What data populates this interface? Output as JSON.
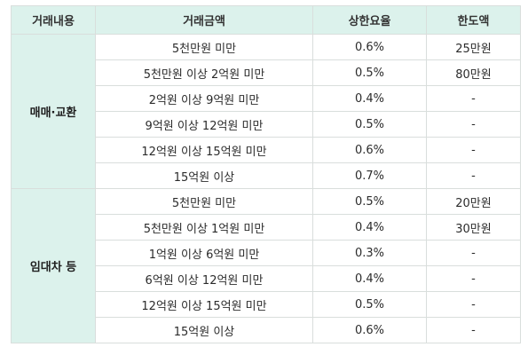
{
  "headers": {
    "category": "거래내용",
    "amount": "거래금액",
    "rate": "상한요율",
    "limit": "한도액"
  },
  "groups": [
    {
      "category": "매매·교환",
      "rows": [
        {
          "amount": "5천만원 미만",
          "rate": "0.6%",
          "limit": "25만원"
        },
        {
          "amount": "5천만원 이상 2억원 미만",
          "rate": "0.5%",
          "limit": "80만원"
        },
        {
          "amount": "2억원 이상 9억원 미만",
          "rate": "0.4%",
          "limit": "-"
        },
        {
          "amount": "9억원 이상 12억원 미만",
          "rate": "0.5%",
          "limit": "-"
        },
        {
          "amount": "12억원 이상 15억원 미만",
          "rate": "0.6%",
          "limit": "-"
        },
        {
          "amount": "15억원 이상",
          "rate": "0.7%",
          "limit": "-"
        }
      ]
    },
    {
      "category": "임대차 등",
      "rows": [
        {
          "amount": "5천만원 미만",
          "rate": "0.5%",
          "limit": "20만원"
        },
        {
          "amount": "5천만원 이상 1억원 미만",
          "rate": "0.4%",
          "limit": "30만원"
        },
        {
          "amount": "1억원 이상 6억원 미만",
          "rate": "0.3%",
          "limit": "-"
        },
        {
          "amount": "6억원 이상 12억원 미만",
          "rate": "0.4%",
          "limit": "-"
        },
        {
          "amount": "12억원 이상 15억원 미만",
          "rate": "0.5%",
          "limit": "-"
        },
        {
          "amount": "15억원 이상",
          "rate": "0.6%",
          "limit": "-"
        }
      ]
    }
  ]
}
